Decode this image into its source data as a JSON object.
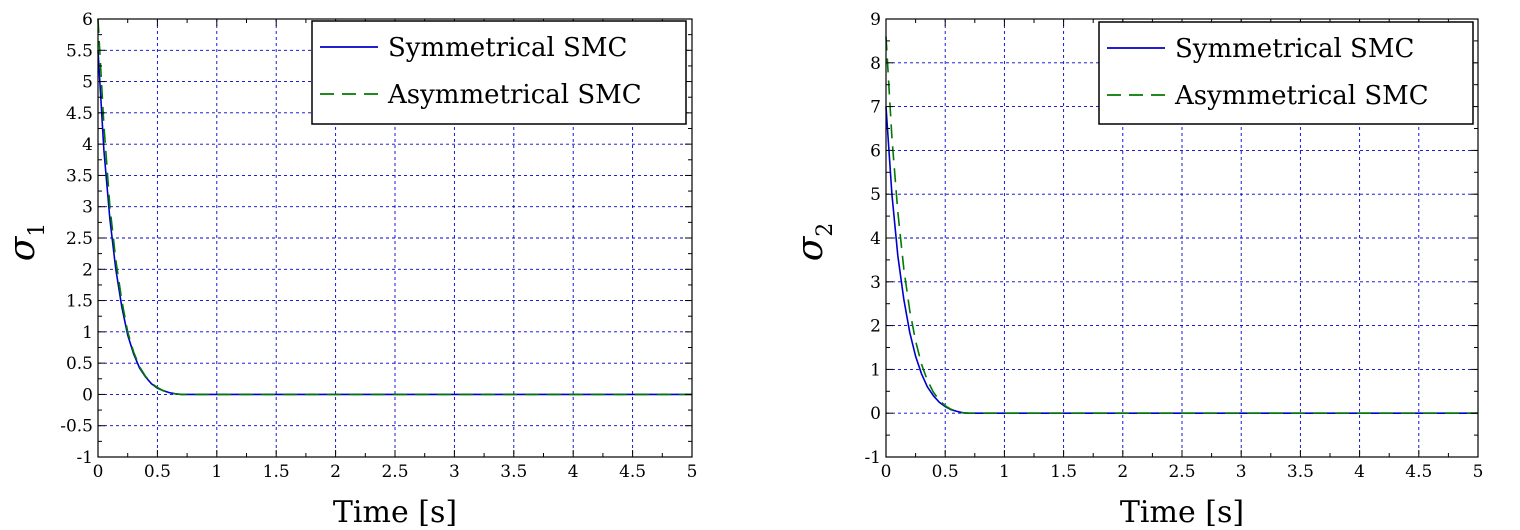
{
  "chart_data": [
    {
      "type": "line",
      "xlabel": "Time [s]",
      "ylabel": "σ",
      "ylabel_subscript": "1",
      "xlim": [
        0,
        5
      ],
      "ylim": [
        -1,
        6
      ],
      "xticks": [
        0,
        0.5,
        1,
        1.5,
        2,
        2.5,
        3,
        3.5,
        4,
        4.5,
        5
      ],
      "xtick_labels": [
        "0",
        "0.5",
        "1",
        "1.5",
        "2",
        "2.5",
        "3",
        "3.5",
        "4",
        "4.5",
        "5"
      ],
      "yticks": [
        -1,
        -0.5,
        0,
        0.5,
        1,
        1.5,
        2,
        2.5,
        3,
        3.5,
        4,
        4.5,
        5,
        5.5,
        6
      ],
      "ytick_labels": [
        "-1",
        "-0.5",
        "0",
        "0.5",
        "1",
        "1.5",
        "2",
        "2.5",
        "3",
        "3.5",
        "4",
        "4.5",
        "5",
        "5.5",
        "6"
      ],
      "grid": true,
      "legend_position": "top-right",
      "series": [
        {
          "name": "Symmetrical SMC",
          "color": "#0000cc",
          "style": "solid",
          "x": [
            0,
            0.05,
            0.1,
            0.15,
            0.2,
            0.25,
            0.3,
            0.35,
            0.4,
            0.45,
            0.5,
            0.55,
            0.6,
            0.65,
            0.7,
            0.75,
            0.8,
            1,
            1.5,
            2,
            3,
            4,
            5
          ],
          "y": [
            5.5,
            3.9,
            2.8,
            2.0,
            1.4,
            0.95,
            0.65,
            0.42,
            0.28,
            0.17,
            0.1,
            0.06,
            0.03,
            0.01,
            0.0,
            0.0,
            0.0,
            0.0,
            0.0,
            0.0,
            0.0,
            0.0,
            0.0
          ]
        },
        {
          "name": "Asymmetrical SMC",
          "color": "#007a00",
          "style": "dashed",
          "x": [
            0,
            0.05,
            0.1,
            0.15,
            0.2,
            0.25,
            0.3,
            0.35,
            0.4,
            0.45,
            0.5,
            0.55,
            0.6,
            0.65,
            0.7,
            0.75,
            0.8,
            1,
            1.5,
            2,
            3,
            4,
            5
          ],
          "y": [
            6.0,
            4.3,
            3.0,
            2.15,
            1.5,
            1.0,
            0.68,
            0.44,
            0.29,
            0.18,
            0.11,
            0.06,
            0.03,
            0.01,
            0.0,
            0.0,
            0.0,
            0.0,
            0.0,
            0.0,
            0.0,
            0.0,
            0.0
          ]
        }
      ]
    },
    {
      "type": "line",
      "xlabel": "Time [s]",
      "ylabel": "σ",
      "ylabel_subscript": "2",
      "xlim": [
        0,
        5
      ],
      "ylim": [
        -1,
        9
      ],
      "xticks": [
        0,
        0.5,
        1,
        1.5,
        2,
        2.5,
        3,
        3.5,
        4,
        4.5,
        5
      ],
      "xtick_labels": [
        "0",
        "0.5",
        "1",
        "1.5",
        "2",
        "2.5",
        "3",
        "3.5",
        "4",
        "4.5",
        "5"
      ],
      "yticks": [
        -1,
        0,
        1,
        2,
        3,
        4,
        5,
        6,
        7,
        8,
        9
      ],
      "ytick_labels": [
        "-1",
        "0",
        "1",
        "2",
        "3",
        "4",
        "5",
        "6",
        "7",
        "8",
        "9"
      ],
      "grid": true,
      "legend_position": "top-right",
      "series": [
        {
          "name": "Symmetrical SMC",
          "color": "#0000cc",
          "style": "solid",
          "x": [
            0,
            0.05,
            0.1,
            0.15,
            0.2,
            0.25,
            0.3,
            0.35,
            0.4,
            0.45,
            0.5,
            0.55,
            0.6,
            0.65,
            0.7,
            0.75,
            0.8,
            1,
            1.5,
            2,
            3,
            4,
            5
          ],
          "y": [
            7.0,
            5.0,
            3.6,
            2.6,
            1.85,
            1.3,
            0.9,
            0.6,
            0.4,
            0.25,
            0.15,
            0.08,
            0.04,
            0.01,
            0.0,
            0.0,
            0.0,
            0.0,
            0.0,
            0.0,
            0.0,
            0.0,
            0.0
          ]
        },
        {
          "name": "Asymmetrical SMC",
          "color": "#007a00",
          "style": "dashed",
          "x": [
            0,
            0.05,
            0.1,
            0.15,
            0.2,
            0.25,
            0.3,
            0.35,
            0.4,
            0.45,
            0.5,
            0.55,
            0.6,
            0.65,
            0.7,
            0.75,
            0.8,
            1,
            1.5,
            2,
            3,
            4,
            5
          ],
          "y": [
            8.6,
            6.3,
            4.6,
            3.3,
            2.35,
            1.65,
            1.12,
            0.75,
            0.48,
            0.3,
            0.17,
            0.09,
            0.04,
            0.01,
            0.0,
            0.0,
            0.0,
            0.0,
            0.0,
            0.0,
            0.0,
            0.0,
            0.0
          ]
        }
      ]
    }
  ]
}
